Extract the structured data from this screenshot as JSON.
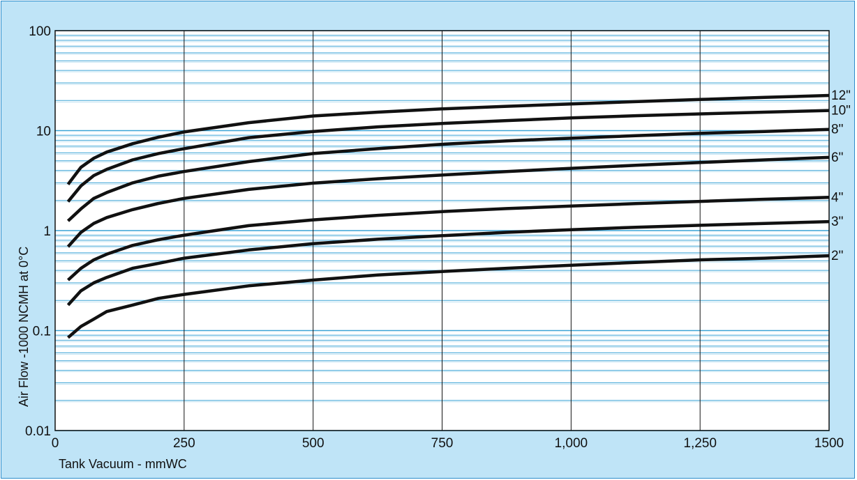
{
  "chart_data": {
    "type": "line",
    "title": "",
    "xlabel": "Tank Vacuum - mmWC",
    "ylabel": "Air Flow -1000 NCMH at 0°C",
    "xlim": [
      0,
      1500
    ],
    "ylim": [
      0.01,
      100
    ],
    "yscale": "log",
    "x_ticks": [
      0,
      250,
      500,
      750,
      1000,
      1250,
      1500
    ],
    "x_tick_labels": [
      "0",
      "250",
      "500",
      "750",
      "1,000",
      "1,250",
      "1500"
    ],
    "y_ticks": [
      0.01,
      0.1,
      1,
      10,
      100
    ],
    "y_tick_labels": [
      "0.01",
      "0.1",
      "1",
      "10",
      "100"
    ],
    "grid": true,
    "colors": {
      "plot_bg": "#ffffff",
      "frame_bg": "#bfe4f7",
      "minor_grid": "#3aa3d6",
      "major_grid": "#111111",
      "line": "#111111"
    },
    "series": [
      {
        "name": "12\"",
        "x": [
          25,
          50,
          75,
          100,
          150,
          200,
          250,
          375,
          500,
          625,
          750,
          875,
          1000,
          1125,
          1250,
          1375,
          1500
        ],
        "y": [
          2.9,
          4.3,
          5.3,
          6.1,
          7.4,
          8.6,
          9.7,
          12,
          14,
          15.3,
          16.5,
          17.5,
          18.5,
          19.5,
          20.5,
          21.5,
          22.5
        ]
      },
      {
        "name": "10\"",
        "x": [
          25,
          50,
          75,
          100,
          150,
          200,
          250,
          375,
          500,
          625,
          750,
          875,
          1000,
          1125,
          1250,
          1375,
          1500
        ],
        "y": [
          1.95,
          2.8,
          3.55,
          4.1,
          5.1,
          5.9,
          6.6,
          8.5,
          9.8,
          10.9,
          11.8,
          12.6,
          13.4,
          14.1,
          14.7,
          15.3,
          15.9
        ]
      },
      {
        "name": "8\"",
        "x": [
          25,
          50,
          75,
          100,
          150,
          200,
          250,
          375,
          500,
          625,
          750,
          875,
          1000,
          1125,
          1250,
          1375,
          1500
        ],
        "y": [
          1.25,
          1.65,
          2.1,
          2.4,
          3.0,
          3.5,
          3.9,
          4.9,
          5.9,
          6.6,
          7.3,
          7.9,
          8.4,
          8.9,
          9.4,
          9.8,
          10.3
        ]
      },
      {
        "name": "6\"",
        "x": [
          25,
          50,
          75,
          100,
          150,
          200,
          250,
          375,
          500,
          625,
          750,
          875,
          1000,
          1125,
          1250,
          1375,
          1500
        ],
        "y": [
          0.69,
          0.96,
          1.18,
          1.35,
          1.62,
          1.87,
          2.1,
          2.58,
          2.98,
          3.3,
          3.6,
          3.9,
          4.2,
          4.5,
          4.8,
          5.1,
          5.4
        ]
      },
      {
        "name": "4\"",
        "x": [
          25,
          50,
          75,
          100,
          150,
          200,
          250,
          375,
          500,
          625,
          750,
          875,
          1000,
          1125,
          1250,
          1375,
          1500
        ],
        "y": [
          0.32,
          0.42,
          0.51,
          0.58,
          0.71,
          0.81,
          0.9,
          1.12,
          1.28,
          1.42,
          1.55,
          1.66,
          1.76,
          1.86,
          1.96,
          2.06,
          2.15
        ]
      },
      {
        "name": "3\"",
        "x": [
          25,
          50,
          75,
          100,
          150,
          200,
          250,
          375,
          500,
          625,
          750,
          875,
          1000,
          1125,
          1250,
          1375,
          1500
        ],
        "y": [
          0.18,
          0.25,
          0.3,
          0.34,
          0.42,
          0.47,
          0.53,
          0.64,
          0.74,
          0.82,
          0.89,
          0.96,
          1.02,
          1.08,
          1.13,
          1.18,
          1.23
        ]
      },
      {
        "name": "2\"",
        "x": [
          25,
          50,
          75,
          100,
          150,
          200,
          250,
          375,
          500,
          625,
          750,
          875,
          1000,
          1125,
          1250,
          1375,
          1500
        ],
        "y": [
          0.085,
          0.11,
          0.13,
          0.155,
          0.18,
          0.21,
          0.23,
          0.28,
          0.32,
          0.36,
          0.39,
          0.42,
          0.45,
          0.48,
          0.51,
          0.53,
          0.56
        ]
      }
    ]
  }
}
